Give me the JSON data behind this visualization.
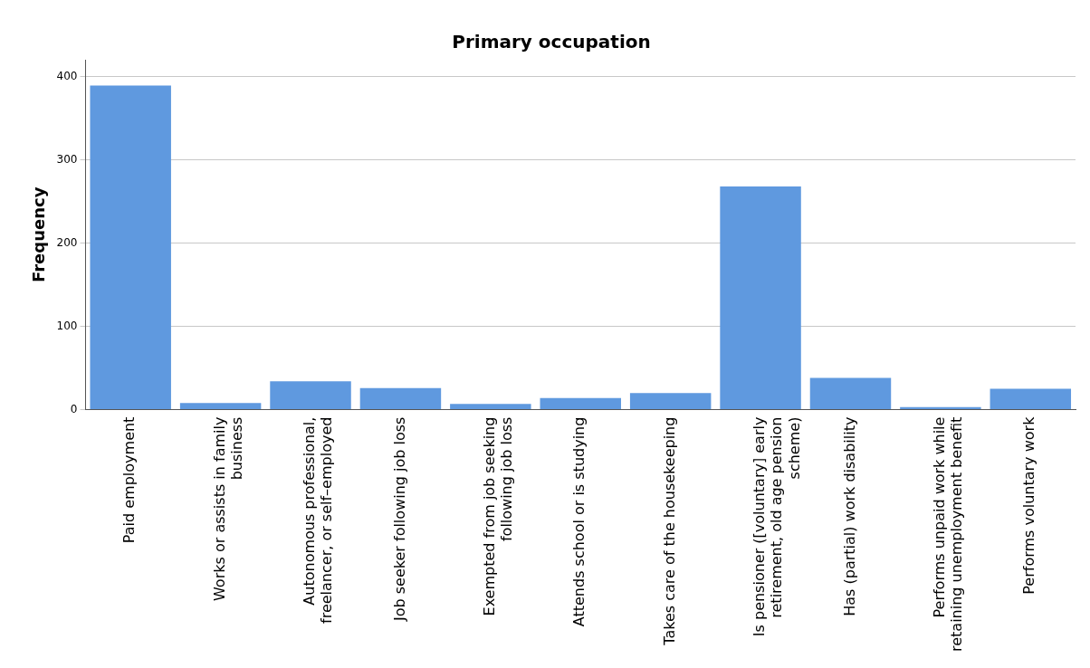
{
  "chart_data": {
    "type": "bar",
    "title": "Primary occupation",
    "ylabel": "Frequency",
    "categories": [
      "Paid employment",
      "Works or assists in family business",
      "Autonomous professional, freelancer, or self–employed",
      "Job seeker following job loss",
      "Exempted from job seeking following job loss",
      "Attends school or is studying",
      "Takes care of the housekeeping",
      "Is pensioner ([voluntary] early retirement, old age pension scheme)",
      "Has (partial) work disability",
      "Performs unpaid work while retaining unemployment benefit",
      "Performs voluntary work"
    ],
    "values": [
      389,
      8,
      34,
      26,
      7,
      14,
      20,
      268,
      38,
      3,
      25
    ],
    "color": "#5f99df",
    "ylim": [
      0,
      420
    ],
    "yticks": [
      0,
      100,
      200,
      300,
      400
    ],
    "grid": "y"
  }
}
